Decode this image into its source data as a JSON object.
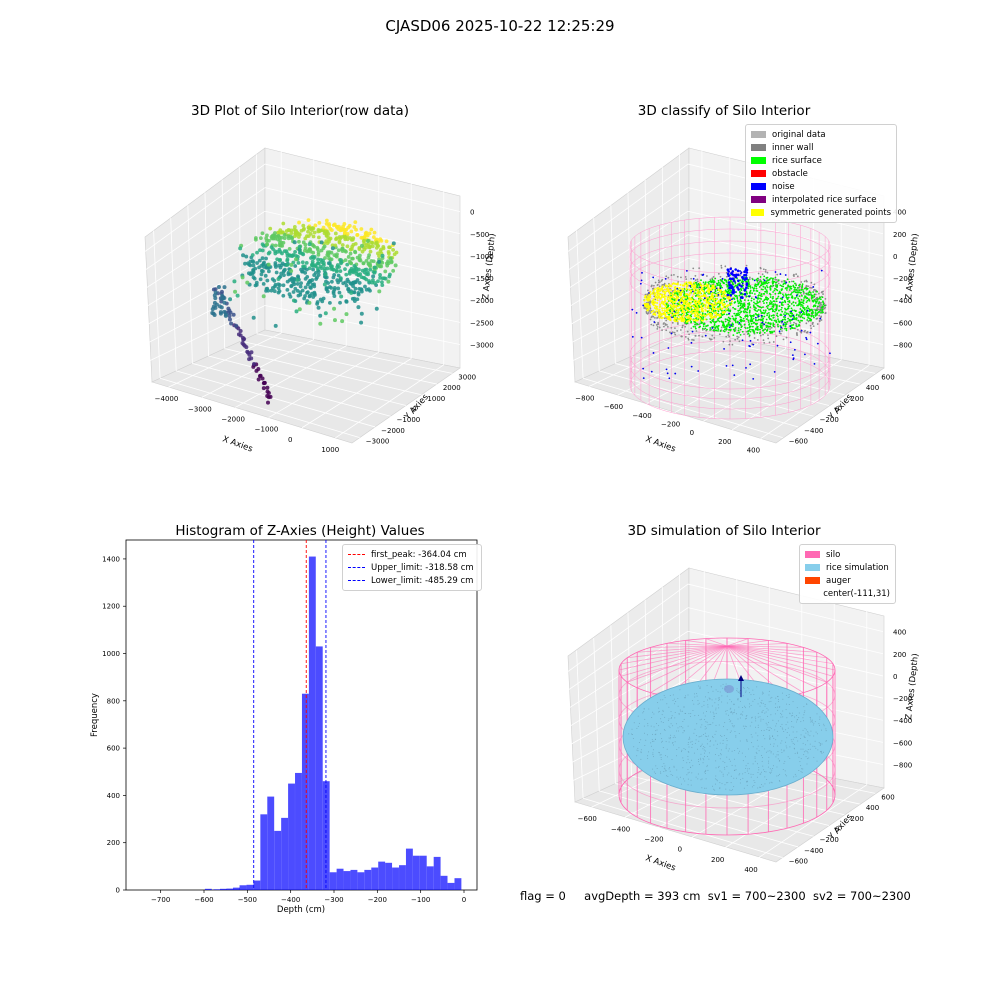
{
  "suptitle": "CJASD06 2025-10-22 12:25:29",
  "footer": {
    "flag": "flag = 0",
    "avg": "avgDepth = 393 cm",
    "sv1": "sv1 = 700~2300",
    "sv2": "sv2 = 700~2300"
  },
  "chart_data": [
    {
      "type": "scatter",
      "title": "3D Plot of Silo Interior(row data)",
      "xlabel": "X Axies",
      "ylabel": "Y Axies",
      "zlabel": "Z Axies (Depth)",
      "x_ticks": [
        "−4000",
        "−3000",
        "−2000",
        "−1000",
        "0",
        "1000"
      ],
      "y_ticks": [
        "−3000",
        "−2000",
        "−1000",
        "0",
        "1000",
        "2000",
        "3000"
      ],
      "z_ticks": [
        "0",
        "−500",
        "−1000",
        "−1500",
        "−2000",
        "−2500",
        "−3000"
      ],
      "colormap": "viridis",
      "legend": []
    },
    {
      "type": "scatter",
      "title": "3D classify of Silo Interior",
      "xlabel": "X Axies",
      "ylabel": "Y Axies",
      "zlabel": "Z Axies (Depth)",
      "x_ticks": [
        "−800",
        "−600",
        "−400",
        "−200",
        "0",
        "200",
        "400"
      ],
      "y_ticks": [
        "−600",
        "−400",
        "−200",
        "0",
        "200",
        "400",
        "600"
      ],
      "z_ticks": [
        "400",
        "200",
        "0",
        "−200",
        "−400",
        "−600",
        "−800"
      ],
      "legend": [
        {
          "label": "original data",
          "color": "#b3b3b3"
        },
        {
          "label": "inner wall",
          "color": "#808080"
        },
        {
          "label": "rice surface",
          "color": "#00ff00"
        },
        {
          "label": "obstacle",
          "color": "#ff0000"
        },
        {
          "label": "noise",
          "color": "#0000ff"
        },
        {
          "label": "interpolated rice surface",
          "color": "#800080"
        },
        {
          "label": "symmetric generated points",
          "color": "#ffff00"
        }
      ]
    },
    {
      "type": "bar",
      "title": "Histogram of Z-Axies (Height) Values",
      "xlabel": "Depth (cm)",
      "ylabel": "Frequency",
      "xlim": [
        -780,
        30
      ],
      "ylim": [
        0,
        1480
      ],
      "x_ticks": [
        -700,
        -600,
        -500,
        -400,
        -300,
        -200,
        -100,
        0
      ],
      "y_ticks": [
        0,
        200,
        400,
        600,
        800,
        1000,
        1200,
        1400
      ],
      "bar_color": "#0000ff",
      "bin_width": 15.9,
      "bins": [
        {
          "x": -590,
          "count": 5
        },
        {
          "x": -570,
          "count": 3
        },
        {
          "x": -555,
          "count": 5
        },
        {
          "x": -540,
          "count": 6
        },
        {
          "x": -525,
          "count": 10
        },
        {
          "x": -510,
          "count": 20
        },
        {
          "x": -494,
          "count": 22
        },
        {
          "x": -478,
          "count": 40
        },
        {
          "x": -462,
          "count": 320
        },
        {
          "x": -446,
          "count": 395
        },
        {
          "x": -430,
          "count": 250
        },
        {
          "x": -414,
          "count": 305
        },
        {
          "x": -398,
          "count": 450
        },
        {
          "x": -382,
          "count": 495
        },
        {
          "x": -366,
          "count": 830
        },
        {
          "x": -350,
          "count": 1410
        },
        {
          "x": -334,
          "count": 1030
        },
        {
          "x": -318,
          "count": 460
        },
        {
          "x": -302,
          "count": 75
        },
        {
          "x": -286,
          "count": 90
        },
        {
          "x": -270,
          "count": 80
        },
        {
          "x": -254,
          "count": 85
        },
        {
          "x": -238,
          "count": 75
        },
        {
          "x": -222,
          "count": 85
        },
        {
          "x": -206,
          "count": 95
        },
        {
          "x": -190,
          "count": 120
        },
        {
          "x": -174,
          "count": 115
        },
        {
          "x": -158,
          "count": 95
        },
        {
          "x": -142,
          "count": 105
        },
        {
          "x": -126,
          "count": 175
        },
        {
          "x": -110,
          "count": 145
        },
        {
          "x": -94,
          "count": 145
        },
        {
          "x": -78,
          "count": 100
        },
        {
          "x": -62,
          "count": 140
        },
        {
          "x": -46,
          "count": 60
        },
        {
          "x": -30,
          "count": 30
        },
        {
          "x": -14,
          "count": 50
        }
      ],
      "lines": [
        {
          "label": "first_peak: -364.04 cm",
          "value": -364.04,
          "color": "#ff0000"
        },
        {
          "label": "Upper_limit: -318.58 cm",
          "value": -318.58,
          "color": "#0000ff"
        },
        {
          "label": "Lower_limit: -485.29 cm",
          "value": -485.29,
          "color": "#0000ff"
        }
      ]
    },
    {
      "type": "scatter",
      "title": "3D simulation of Silo Interior",
      "xlabel": "X Axies",
      "ylabel": "Y Axies",
      "zlabel": "Z Axies (Depth)",
      "x_ticks": [
        "−600",
        "−400",
        "−200",
        "0",
        "200",
        "400"
      ],
      "y_ticks": [
        "−600",
        "−400",
        "−200",
        "0",
        "200",
        "400",
        "600"
      ],
      "z_ticks": [
        "400",
        "200",
        "0",
        "−200",
        "−400",
        "−600",
        "−800"
      ],
      "legend": [
        {
          "label": "silo",
          "color": "#ff69b4"
        },
        {
          "label": "rice simulation",
          "color": "#87ceeb"
        },
        {
          "label": "auger",
          "color": "#ff4500"
        },
        {
          "label": "center(-111,31)",
          "color": ""
        }
      ]
    }
  ]
}
